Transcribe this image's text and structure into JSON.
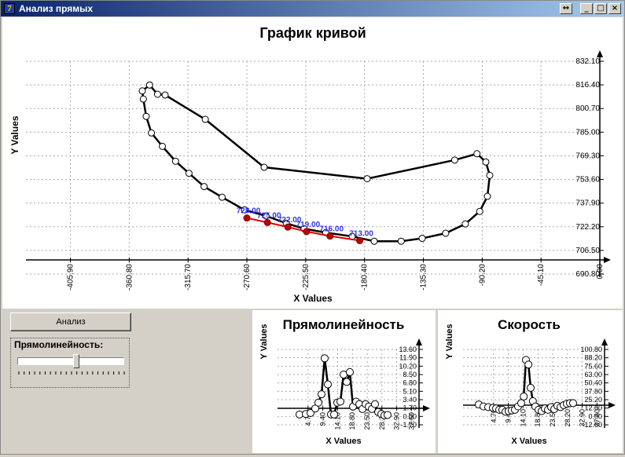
{
  "window": {
    "title": "Анализ прямых",
    "buttons": [
      "↔",
      "_",
      "□",
      "×"
    ]
  },
  "controls": {
    "analyze_label": "Анализ",
    "straightness_label": "Прямолинейность:",
    "slider_value": 0.55
  },
  "chart_data": [
    {
      "type": "line",
      "title": "График кривой",
      "xlabel": "X Values",
      "ylabel": "Y Values",
      "x_ticks": [
        "-405.90",
        "-360.80",
        "-315.70",
        "-270.60",
        "-225.50",
        "-180.40",
        "-135.30",
        "-90.20",
        "-45.10",
        "0.00"
      ],
      "y_ticks": [
        "690.80",
        "706.50",
        "722.20",
        "737.90",
        "753.60",
        "769.30",
        "785.00",
        "800.70",
        "816.40",
        "832.10"
      ],
      "xlim": [
        -440,
        0
      ],
      "ylim": [
        690.8,
        832.1
      ],
      "series": [
        {
          "x": [
            -345.2,
            -350.8,
            -350.0,
            -347.8,
            -343.8,
            -335.4,
            -325.3,
            -315.0,
            -303.4,
            -289.6,
            -272.4,
            -256.0,
            -240.4,
            -226.7,
            -210.1,
            -189.9,
            -173.0,
            -152.3,
            -136.2,
            -118.2,
            -103.1,
            -92.1,
            -86.2,
            -84.4,
            -87.4,
            -94.2,
            -111.3,
            -178.4,
            -257.4,
            -302.5,
            -333.3,
            -339.1,
            -345.2
          ],
          "y": [
            816.3,
            812.4,
            807.0,
            795.5,
            784.5,
            775.6,
            765.7,
            757.7,
            748.9,
            741.8,
            733.4,
            729.4,
            724.5,
            720.9,
            718.3,
            715.8,
            712.6,
            712.6,
            714.5,
            717.9,
            724.1,
            732.4,
            742.4,
            756.3,
            765.2,
            770.7,
            766.5,
            754.1,
            761.7,
            793.5,
            809.7,
            810.2,
            816.3
          ]
        },
        {
          "x": [
            -270.6,
            -254.8,
            -239.2,
            -224.9,
            -206.9,
            -184.1
          ],
          "y": [
            728.0,
            725.0,
            722.0,
            719.0,
            716.0,
            713.0
          ],
          "labels": [
            "728.00",
            "725.00",
            "722.00",
            "719.00",
            "716.00",
            "713.00"
          ]
        }
      ]
    },
    {
      "type": "line",
      "title": "Прямолинейность",
      "xlabel": "X Values",
      "ylabel": "Y Values",
      "x_ticks": [
        "4.70",
        "9.40",
        "14.10",
        "18.80",
        "23.50",
        "28.20",
        "32.90",
        "37.60"
      ],
      "y_ticks": [
        "-1.70",
        "0.00",
        "1.70",
        "3.40",
        "5.10",
        "6.80",
        "8.50",
        "10.20",
        "11.90",
        "13.60"
      ],
      "xlim": [
        -5,
        40
      ],
      "ylim": [
        -1.7,
        13.6
      ],
      "series": [
        {
          "x": [
            2,
            4,
            5.5,
            7,
            8,
            9,
            10,
            11,
            12,
            13,
            14,
            15,
            16,
            17,
            18,
            19,
            20,
            21,
            22,
            23,
            24,
            25,
            26,
            27,
            28,
            29,
            30
          ],
          "y": [
            0.4,
            0.5,
            0.7,
            1.6,
            2.8,
            4.5,
            11.8,
            6.5,
            0.4,
            0.4,
            2.8,
            3.0,
            8.5,
            7.0,
            9.0,
            2.0,
            3.0,
            2.5,
            1.5,
            2.5,
            2.0,
            1.5,
            2.5,
            0.9,
            0.5,
            0.2,
            0.3
          ]
        }
      ]
    },
    {
      "type": "line",
      "title": "Скорость",
      "xlabel": "X Values",
      "ylabel": "Y Values",
      "x_ticks": [
        "4.70",
        "9.40",
        "14.10",
        "18.80",
        "23.50",
        "28.20",
        "32.90",
        "37.60"
      ],
      "y_ticks": [
        "-12.60",
        "0.00",
        "12.60",
        "25.20",
        "37.80",
        "50.40",
        "63.00",
        "75.60",
        "88.20",
        "100.80"
      ],
      "xlim": [
        -5,
        40
      ],
      "ylim": [
        -12.6,
        100.8
      ],
      "series": [
        {
          "x": [
            0,
            1.5,
            3,
            4.5,
            5.5,
            6.5,
            7.5,
            8.5,
            9.5,
            10.5,
            11.5,
            12.5,
            13.5,
            14.3,
            15,
            15.8,
            16.5,
            17.2,
            18,
            19,
            20,
            21,
            22,
            23,
            24,
            25,
            26,
            27,
            28,
            29,
            30
          ],
          "y": [
            18,
            15,
            14,
            13,
            12,
            10,
            10,
            7,
            8,
            9,
            10,
            15,
            20,
            30,
            85,
            78,
            43,
            23,
            15,
            10,
            8,
            12,
            10,
            14,
            11,
            16,
            14,
            17,
            19,
            20,
            20
          ]
        }
      ]
    }
  ]
}
